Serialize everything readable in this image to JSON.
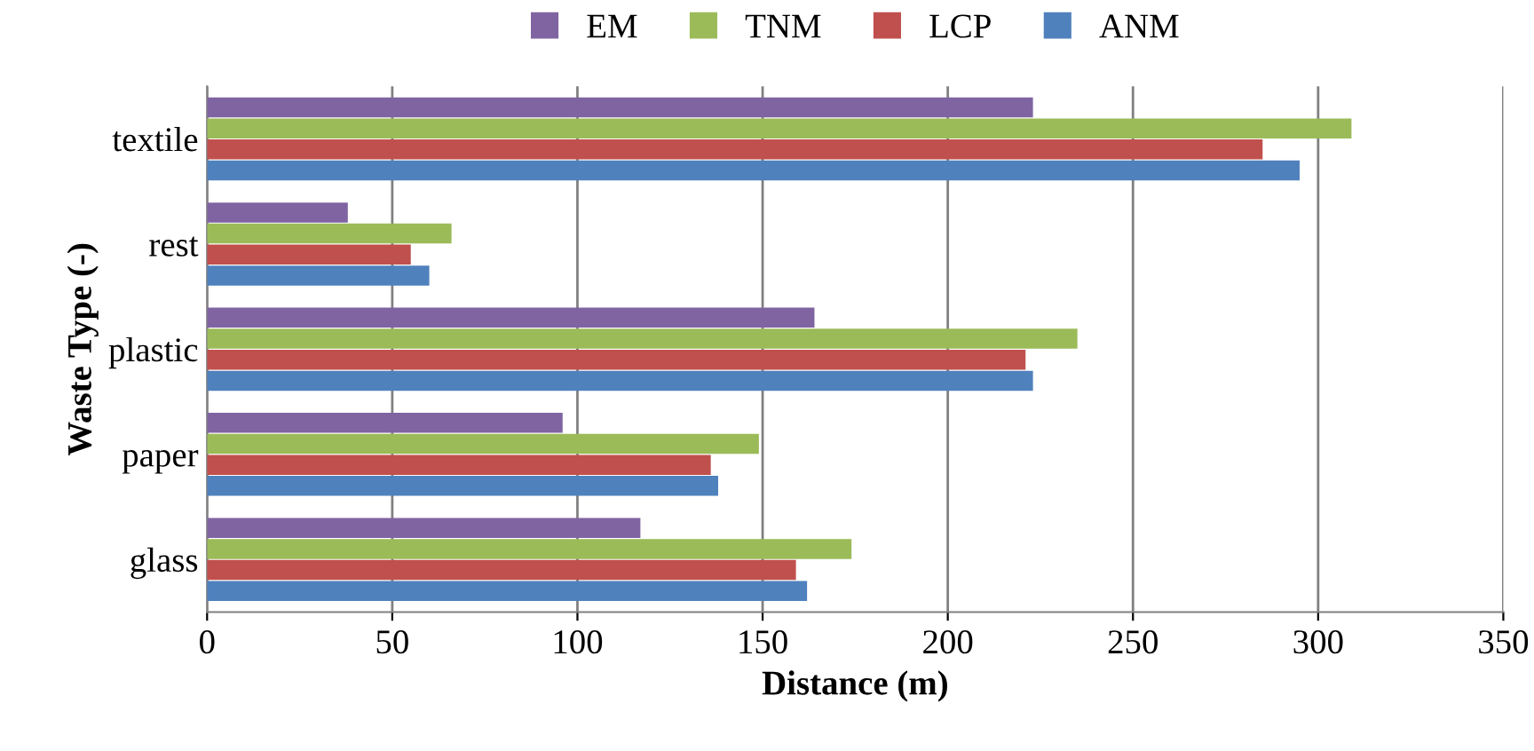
{
  "chart_data": {
    "type": "bar",
    "orientation": "horizontal",
    "xlabel": "Distance (m)",
    "ylabel": "Waste Type (-)",
    "categories": [
      "textile",
      "rest",
      "plastic",
      "paper",
      "glass"
    ],
    "series": [
      {
        "name": "EM",
        "color": "#8064a2",
        "values": [
          223,
          38,
          164,
          96,
          117
        ]
      },
      {
        "name": "TNM",
        "color": "#9bbb59",
        "values": [
          309,
          66,
          235,
          149,
          174
        ]
      },
      {
        "name": "LCP",
        "color": "#c0504d",
        "values": [
          285,
          55,
          221,
          136,
          159
        ]
      },
      {
        "name": "ANM",
        "color": "#4f81bd",
        "values": [
          295,
          60,
          223,
          138,
          162
        ]
      }
    ],
    "xlim": [
      0,
      350
    ],
    "xticks": [
      0,
      50,
      100,
      150,
      200,
      250,
      300,
      350
    ],
    "grid": "x",
    "legend": "top"
  }
}
